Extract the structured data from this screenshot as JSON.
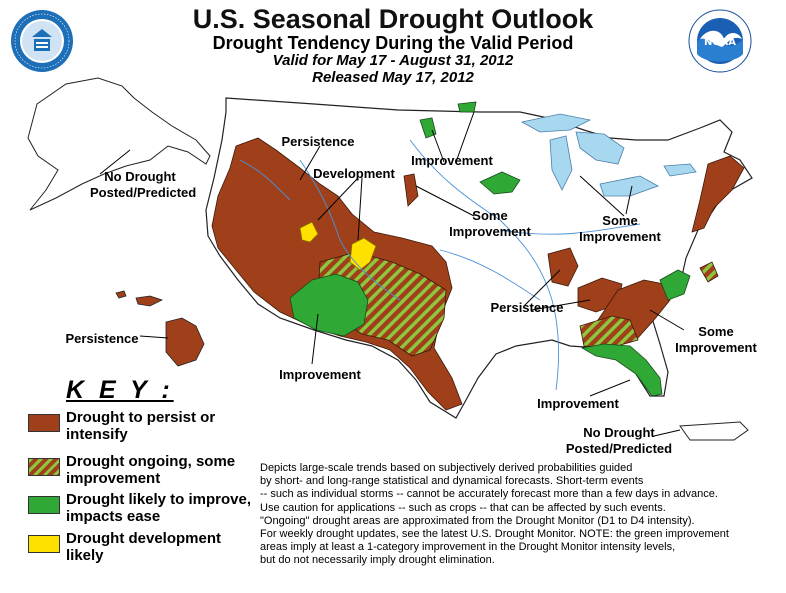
{
  "header": {
    "title": "U.S. Seasonal Drought Outlook",
    "subtitle": "Drought Tendency During the Valid Period",
    "valid": "Valid for May 17 - August 31, 2012",
    "released": "Released May 17, 2012"
  },
  "logos": {
    "left": "DEPARTMENT OF COMMERCE · UNITED STATES OF AMERICA",
    "right": "NATIONAL OCEANIC AND ATMOSPHERIC ADMINISTRATION · U.S. DEPARTMENT OF COMMERCE",
    "right_short": "NOAA"
  },
  "map_labels": {
    "alaska_l1": "No Drought",
    "alaska_l2": "Posted/Predicted",
    "hawaii": "Persistence",
    "nw_persistence": "Persistence",
    "development": "Development",
    "sw_improvement": "Improvement",
    "north_improvement": "Improvement",
    "central_l1": "Some",
    "central_l2": "Improvement",
    "lakes_l1": "Some",
    "lakes_l2": "Improvement",
    "se_persistence": "Persistence",
    "se_l1": "Some",
    "se_l2": "Improvement",
    "fl_improvement": "Improvement",
    "pr_l1": "No Drought",
    "pr_l2": "Posted/Predicted"
  },
  "legend": {
    "heading": "K E Y :",
    "items": [
      {
        "line1": "Drought to persist or",
        "line2": "intensify",
        "color": "#A0401A"
      },
      {
        "line1": "Drought ongoing, some",
        "line2": "improvement",
        "color": "#A0401A",
        "stripe": "#8DC63F"
      },
      {
        "line1": "Drought likely to improve,",
        "line2": "impacts ease",
        "color": "#2FA836"
      },
      {
        "line1": "Drought development",
        "line2": "likely",
        "color": "#FFE100"
      }
    ]
  },
  "description": [
    "Depicts large-scale trends based on subjectively derived probabilities guided",
    "by short- and long-range statistical and dynamical forecasts. Short-term events",
    "-- such as individual storms -- cannot be accurately forecast more than a few days in advance.",
    "Use caution for applications -- such as crops -- that can be affected by such events.",
    "\"Ongoing\" drought areas are approximated from the Drought Monitor (D1 to D4 intensity).",
    "For weekly drought updates, see the latest U.S. Drought Monitor. NOTE: the green improvement",
    "areas imply at least a 1-category improvement in the Drought Monitor intensity levels,",
    "but do not necessarily imply drought elimination."
  ]
}
